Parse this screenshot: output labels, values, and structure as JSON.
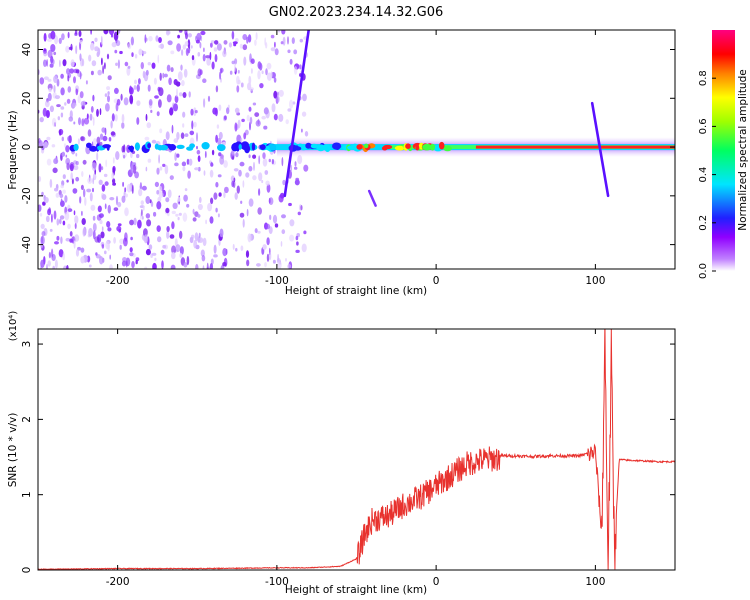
{
  "title": "GN02.2023.234.14.32.G06",
  "colors": {
    "snr_line": "#e8322e",
    "background": "#ffffff"
  },
  "chart_data": [
    {
      "type": "heatmap",
      "title": "",
      "xlabel": "Height of straight line (km)",
      "ylabel": "Frequency (Hz)",
      "xlim": [
        -250,
        150
      ],
      "ylim": [
        -50,
        48
      ],
      "x_ticks": [
        "-200",
        "-100",
        "0",
        "100"
      ],
      "y_ticks": [
        "40",
        "20",
        "0",
        "-20",
        "-40"
      ],
      "colorbar": {
        "label": "Normalized spectral amplitude",
        "range": [
          0,
          1
        ],
        "ticks": [
          "0.0",
          "0.2",
          "0.4",
          "0.6",
          "0.8"
        ],
        "colormap": [
          "#ffffff",
          "#a020f0",
          "#2020ff",
          "#00e5ff",
          "#00ff40",
          "#ffff00",
          "#ff8000",
          "#ff0000",
          "#ff0080"
        ]
      },
      "noise_region_x": [
        -250,
        -80
      ],
      "signal_track": {
        "frequency_hz": 0,
        "x_range": [
          -100,
          150
        ],
        "peak_amplitude_region_x": [
          25,
          150
        ]
      },
      "crossing_features": [
        {
          "x_start": -95,
          "x_end": -80,
          "freq_start": -20,
          "freq_end": 48
        },
        {
          "x_start": 98,
          "x_end": 108,
          "freq_start": 18,
          "freq_end": -20
        }
      ]
    },
    {
      "type": "line",
      "title": "",
      "xlabel": "Height of straight line (km)",
      "ylabel": "SNR (10 * v/v)",
      "scale_label": "(x10⁴)",
      "xlim": [
        -250,
        150
      ],
      "ylim": [
        0,
        3.2
      ],
      "x_ticks": [
        "-200",
        "-100",
        "0",
        "100"
      ],
      "y_ticks": [
        "0",
        "1",
        "2",
        "3"
      ],
      "series": [
        {
          "x": [
            -250,
            -200,
            -150,
            -100,
            -80,
            -60,
            -50,
            -45,
            -40,
            -30,
            -20,
            -10,
            0,
            10,
            20,
            30,
            40,
            50,
            60,
            70,
            80,
            90,
            95,
            100,
            104,
            106,
            108,
            110,
            112,
            115,
            120,
            130,
            140,
            150
          ],
          "values": [
            0.01,
            0.02,
            0.02,
            0.03,
            0.03,
            0.05,
            0.15,
            0.5,
            0.7,
            0.75,
            0.9,
            1.0,
            1.15,
            1.3,
            1.45,
            1.5,
            1.52,
            1.52,
            1.51,
            1.52,
            1.52,
            1.52,
            1.55,
            1.6,
            0.5,
            3.2,
            0.1,
            2.9,
            0.3,
            1.47,
            1.46,
            1.45,
            1.44,
            1.44
          ]
        }
      ]
    }
  ]
}
